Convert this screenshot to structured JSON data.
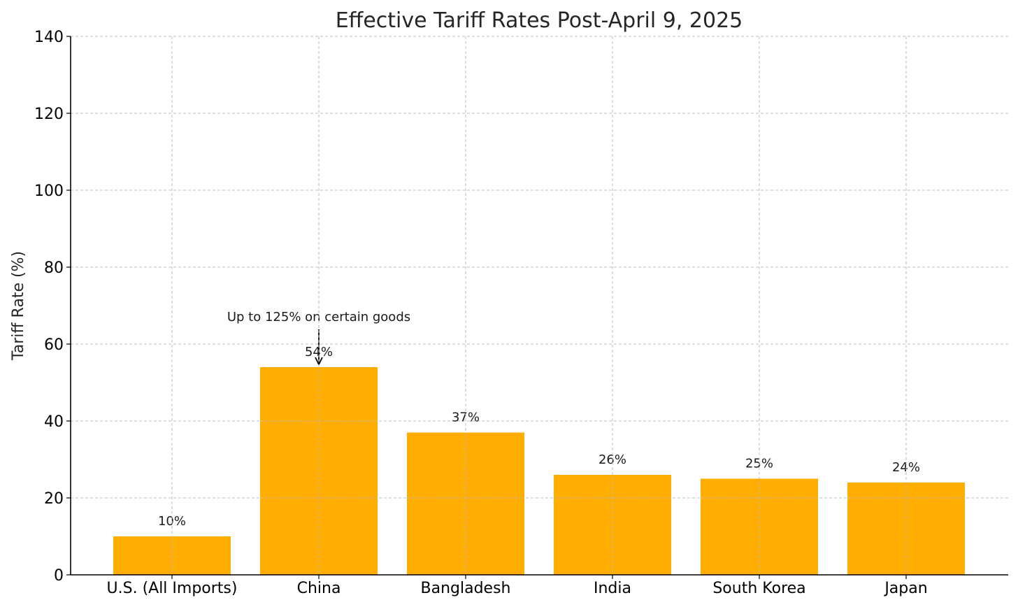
{
  "chart_data": {
    "type": "bar",
    "title": "Effective Tariff Rates Post-April 9, 2025",
    "xlabel": "",
    "ylabel": "Tariff Rate (%)",
    "ylim": [
      0,
      140
    ],
    "yticks": [
      0,
      20,
      40,
      60,
      80,
      100,
      120,
      140
    ],
    "categories": [
      "U.S. (All Imports)",
      "China",
      "Bangladesh",
      "India",
      "South Korea",
      "Japan"
    ],
    "values": [
      10,
      54,
      37,
      26,
      25,
      24
    ],
    "data_labels": [
      "10%",
      "54%",
      "37%",
      "26%",
      "25%",
      "24%"
    ],
    "bar_color": "#ffad00",
    "grid": true,
    "annotations": [
      {
        "text": "Up to 125% on certain goods",
        "category": "China",
        "points_to_value": 54
      }
    ]
  }
}
